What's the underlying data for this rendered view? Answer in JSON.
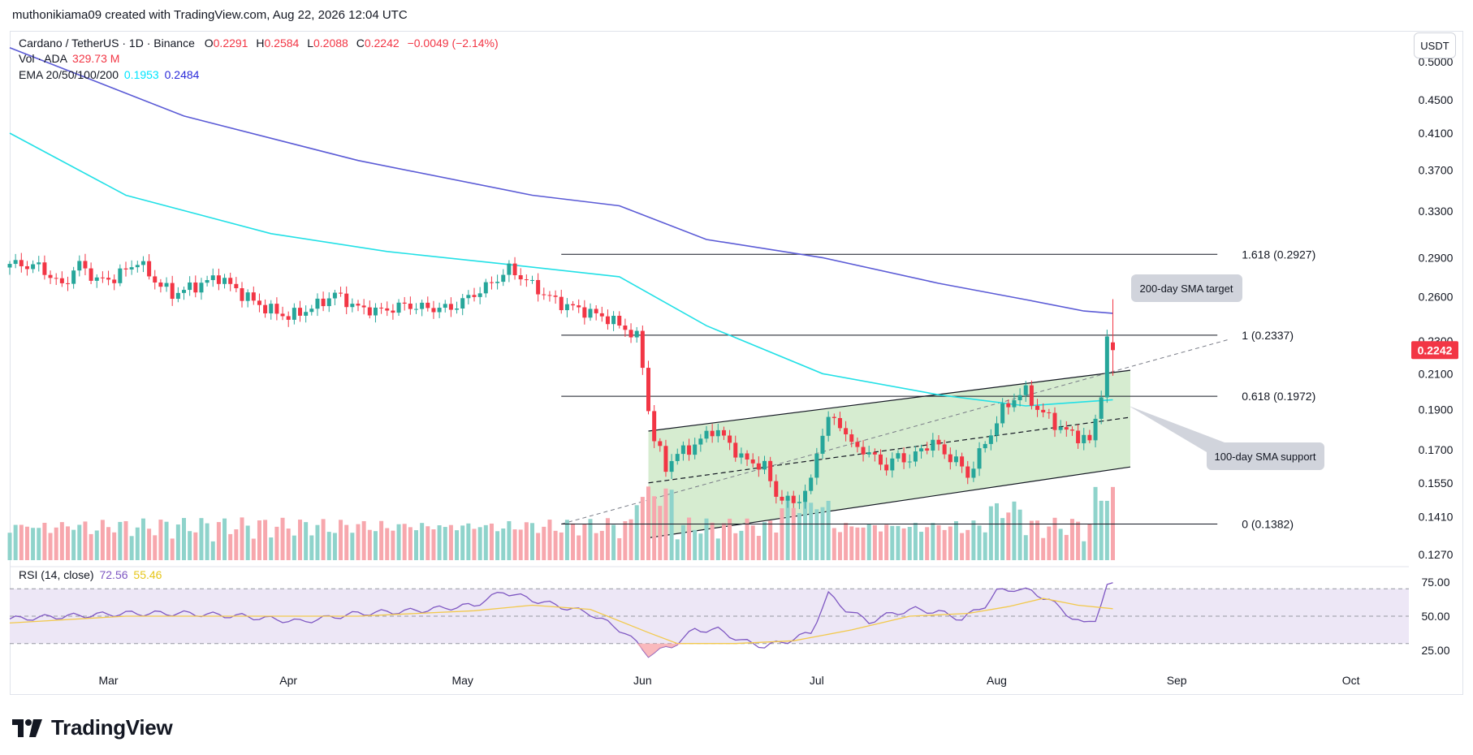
{
  "header": {
    "caption": "muthonikiama09 created with TradingView.com, Aug 22, 2026 12:04 UTC"
  },
  "legend": {
    "symbol": "Cardano / TetherUS · 1D · Binance",
    "open_label": "O",
    "open": "0.2291",
    "high_label": "H",
    "high": "0.2584",
    "low_label": "L",
    "low": "0.2088",
    "close_label": "C",
    "close": "0.2242",
    "change": "−0.0049 (−2.14%)",
    "vol_label": "Vol · ADA",
    "vol_value": "329.73 M",
    "ema_label": "EMA 20/50/100/200",
    "ema_a": "0.1953",
    "ema_b": "0.2484",
    "rsi_label": "RSI (14, close)",
    "rsi_value": "72.56",
    "rsi_ma": "55.46"
  },
  "currency_button": "USDT",
  "footer": {
    "brand": "TradingView"
  },
  "colors": {
    "up": "#26a69a",
    "down": "#f23645",
    "sma200": "#5b5bd6",
    "sma100": "#22e0e6",
    "channel_fill": "#c8e6c0",
    "rsi_line": "#7e57c2",
    "rsi_ma": "#f2c94c",
    "rsi_band": "#ede7f6"
  },
  "chart_data": {
    "type": "candlestick",
    "scale": "log",
    "ylim": [
      0.125,
      0.545
    ],
    "y_ticks": [
      "0.5000",
      "0.4500",
      "0.4100",
      "0.3700",
      "0.3300",
      "0.2900",
      "0.2600",
      "0.2300",
      "0.2100",
      "0.1900",
      "0.1700",
      "0.1550",
      "0.1410",
      "0.1270"
    ],
    "x_ticks": [
      {
        "label": "Mar",
        "day": 17
      },
      {
        "label": "Apr",
        "day": 48
      },
      {
        "label": "May",
        "day": 78
      },
      {
        "label": "Jun",
        "day": 109
      },
      {
        "label": "Jul",
        "day": 139
      },
      {
        "label": "Aug",
        "day": 170
      },
      {
        "label": "Sep",
        "day": 201
      },
      {
        "label": "Oct",
        "day": 231
      }
    ],
    "last_price": "0.2242",
    "fib_levels": [
      {
        "label": "1.618 (0.2927)",
        "value": 0.2927
      },
      {
        "label": "1 (0.2337)",
        "value": 0.2337
      },
      {
        "label": "0.618 (0.1972)",
        "value": 0.1972
      },
      {
        "label": "0 (0.1382)",
        "value": 0.1382
      }
    ],
    "annotations": [
      {
        "text": "200-day SMA target"
      },
      {
        "text": "100-day SMA support"
      }
    ],
    "rsi": {
      "ylim": [
        15,
        85
      ],
      "ticks": [
        "75.00",
        "50.00",
        "25.00"
      ],
      "upper": 70,
      "middle": 50,
      "lower": 30
    },
    "anchors": [
      [
        0,
        0.285
      ],
      [
        5,
        0.283
      ],
      [
        9,
        0.268
      ],
      [
        12,
        0.285
      ],
      [
        15,
        0.272
      ],
      [
        18,
        0.274
      ],
      [
        22,
        0.287
      ],
      [
        25,
        0.272
      ],
      [
        28,
        0.262
      ],
      [
        32,
        0.268
      ],
      [
        36,
        0.275
      ],
      [
        40,
        0.262
      ],
      [
        44,
        0.252
      ],
      [
        48,
        0.246
      ],
      [
        52,
        0.252
      ],
      [
        56,
        0.262
      ],
      [
        60,
        0.252
      ],
      [
        64,
        0.25
      ],
      [
        68,
        0.254
      ],
      [
        72,
        0.252
      ],
      [
        76,
        0.252
      ],
      [
        80,
        0.262
      ],
      [
        83,
        0.27
      ],
      [
        86,
        0.281
      ],
      [
        89,
        0.272
      ],
      [
        92,
        0.262
      ],
      [
        95,
        0.255
      ],
      [
        99,
        0.25
      ],
      [
        103,
        0.245
      ],
      [
        106,
        0.238
      ],
      [
        108,
        0.232
      ],
      [
        109,
        0.215
      ],
      [
        110,
        0.19
      ],
      [
        111,
        0.175
      ],
      [
        113,
        0.162
      ],
      [
        115,
        0.168
      ],
      [
        118,
        0.172
      ],
      [
        121,
        0.18
      ],
      [
        123,
        0.176
      ],
      [
        126,
        0.166
      ],
      [
        128,
        0.164
      ],
      [
        130,
        0.162
      ],
      [
        132,
        0.15
      ],
      [
        134,
        0.147
      ],
      [
        136,
        0.148
      ],
      [
        138,
        0.155
      ],
      [
        139,
        0.17
      ],
      [
        141,
        0.185
      ],
      [
        143,
        0.183
      ],
      [
        145,
        0.172
      ],
      [
        147,
        0.17
      ],
      [
        149,
        0.166
      ],
      [
        151,
        0.162
      ],
      [
        153,
        0.167
      ],
      [
        155,
        0.165
      ],
      [
        157,
        0.17
      ],
      [
        159,
        0.174
      ],
      [
        161,
        0.168
      ],
      [
        163,
        0.165
      ],
      [
        165,
        0.158
      ],
      [
        167,
        0.168
      ],
      [
        169,
        0.178
      ],
      [
        171,
        0.19
      ],
      [
        173,
        0.196
      ],
      [
        175,
        0.2
      ],
      [
        177,
        0.19
      ],
      [
        179,
        0.186
      ],
      [
        181,
        0.18
      ],
      [
        183,
        0.178
      ],
      [
        185,
        0.175
      ],
      [
        186,
        0.174
      ],
      [
        187,
        0.185
      ],
      [
        188,
        0.2
      ],
      [
        189,
        0.229
      ],
      [
        190,
        0.2242
      ]
    ],
    "sma200": [
      [
        0,
        0.52
      ],
      [
        30,
        0.43
      ],
      [
        60,
        0.38
      ],
      [
        90,
        0.345
      ],
      [
        105,
        0.335
      ],
      [
        120,
        0.305
      ],
      [
        140,
        0.29
      ],
      [
        160,
        0.27
      ],
      [
        175,
        0.258
      ],
      [
        185,
        0.25
      ],
      [
        190,
        0.2484
      ]
    ],
    "sma100": [
      [
        0,
        0.41
      ],
      [
        20,
        0.345
      ],
      [
        45,
        0.31
      ],
      [
        65,
        0.295
      ],
      [
        85,
        0.285
      ],
      [
        105,
        0.275
      ],
      [
        120,
        0.24
      ],
      [
        140,
        0.21
      ],
      [
        160,
        0.198
      ],
      [
        175,
        0.192
      ],
      [
        190,
        0.1953
      ]
    ],
    "channel": {
      "upper": [
        [
          110,
          0.179
        ],
        [
          193,
          0.212
        ]
      ],
      "lower": [
        [
          110,
          0.133
        ],
        [
          193,
          0.162
        ]
      ],
      "mid": [
        [
          110,
          0.155
        ],
        [
          193,
          0.186
        ]
      ],
      "box_start": 110,
      "box_end": 193,
      "trend": [
        [
          95,
          0.1382
        ],
        [
          210,
          0.231
        ]
      ]
    },
    "volume_ylim": [
      0,
      45
    ],
    "volume_notes": "Volume in millions ADA, values approximated from bar heights",
    "rsi_anchors": [
      [
        0,
        48
      ],
      [
        10,
        50
      ],
      [
        20,
        52
      ],
      [
        30,
        52
      ],
      [
        40,
        50
      ],
      [
        50,
        46
      ],
      [
        60,
        52
      ],
      [
        70,
        54
      ],
      [
        80,
        58
      ],
      [
        85,
        68
      ],
      [
        90,
        62
      ],
      [
        100,
        52
      ],
      [
        106,
        38
      ],
      [
        110,
        22
      ],
      [
        114,
        28
      ],
      [
        118,
        40
      ],
      [
        122,
        40
      ],
      [
        126,
        32
      ],
      [
        130,
        28
      ],
      [
        134,
        32
      ],
      [
        138,
        38
      ],
      [
        141,
        66
      ],
      [
        144,
        55
      ],
      [
        148,
        46
      ],
      [
        152,
        52
      ],
      [
        156,
        55
      ],
      [
        160,
        53
      ],
      [
        164,
        48
      ],
      [
        168,
        58
      ],
      [
        170,
        68
      ],
      [
        173,
        70
      ],
      [
        176,
        68
      ],
      [
        179,
        62
      ],
      [
        182,
        52
      ],
      [
        185,
        44
      ],
      [
        187,
        48
      ],
      [
        189,
        72
      ],
      [
        190,
        72.56
      ]
    ],
    "rsi_ma_anchors": [
      [
        0,
        45
      ],
      [
        20,
        50
      ],
      [
        40,
        50
      ],
      [
        60,
        50
      ],
      [
        80,
        54
      ],
      [
        90,
        58
      ],
      [
        100,
        55
      ],
      [
        110,
        38
      ],
      [
        115,
        30
      ],
      [
        125,
        30
      ],
      [
        135,
        32
      ],
      [
        145,
        40
      ],
      [
        155,
        50
      ],
      [
        165,
        52
      ],
      [
        172,
        57
      ],
      [
        178,
        63
      ],
      [
        184,
        58
      ],
      [
        190,
        55.46
      ]
    ]
  }
}
